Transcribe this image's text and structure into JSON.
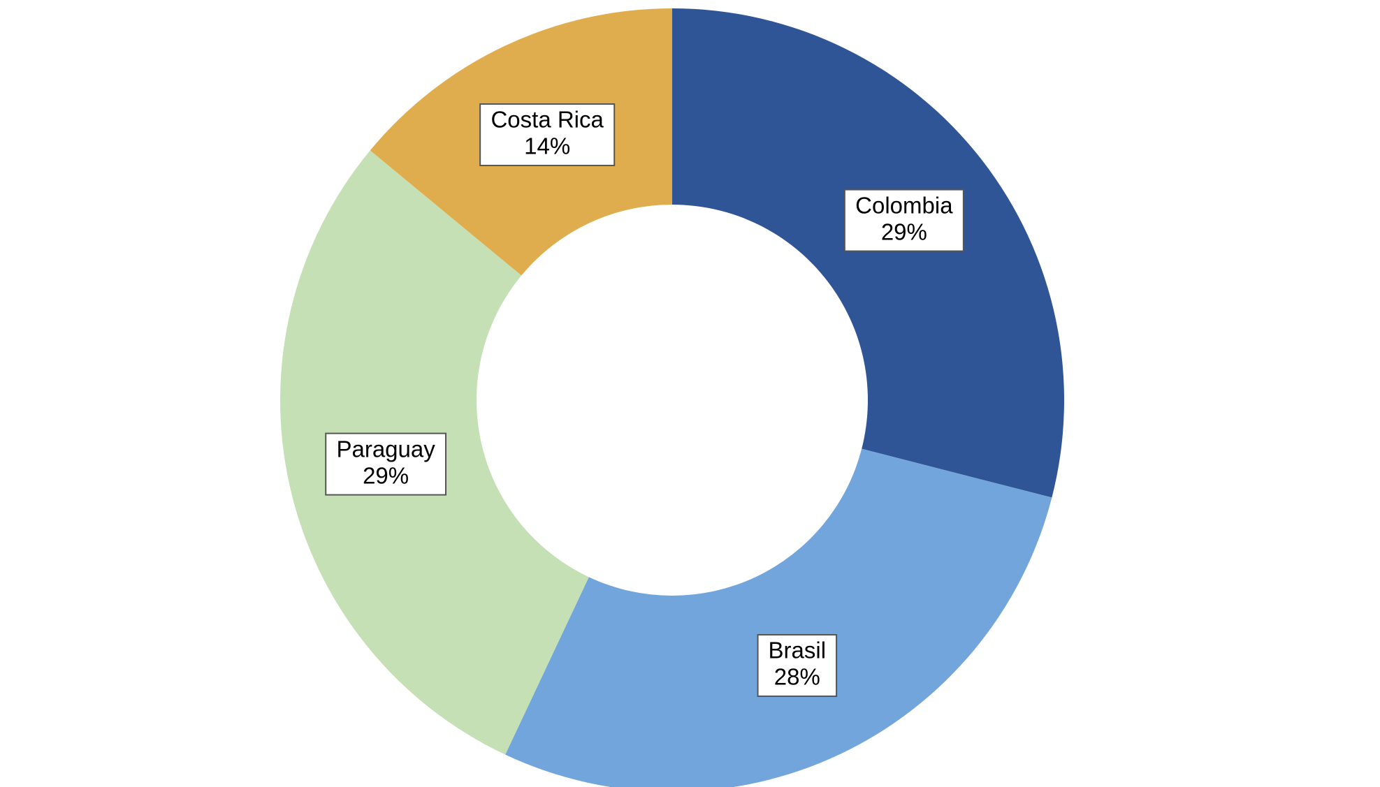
{
  "chart_data": {
    "type": "donut",
    "categories": [
      "Colombia",
      "Brasil",
      "Paraguay",
      "Costa Rica"
    ],
    "values": [
      29,
      28,
      29,
      14
    ],
    "value_labels": [
      "29%",
      "28%",
      "29%",
      "14%"
    ],
    "colors": [
      "#2f5597",
      "#71a5db",
      "#c5e0b4",
      "#dfad4e"
    ]
  }
}
